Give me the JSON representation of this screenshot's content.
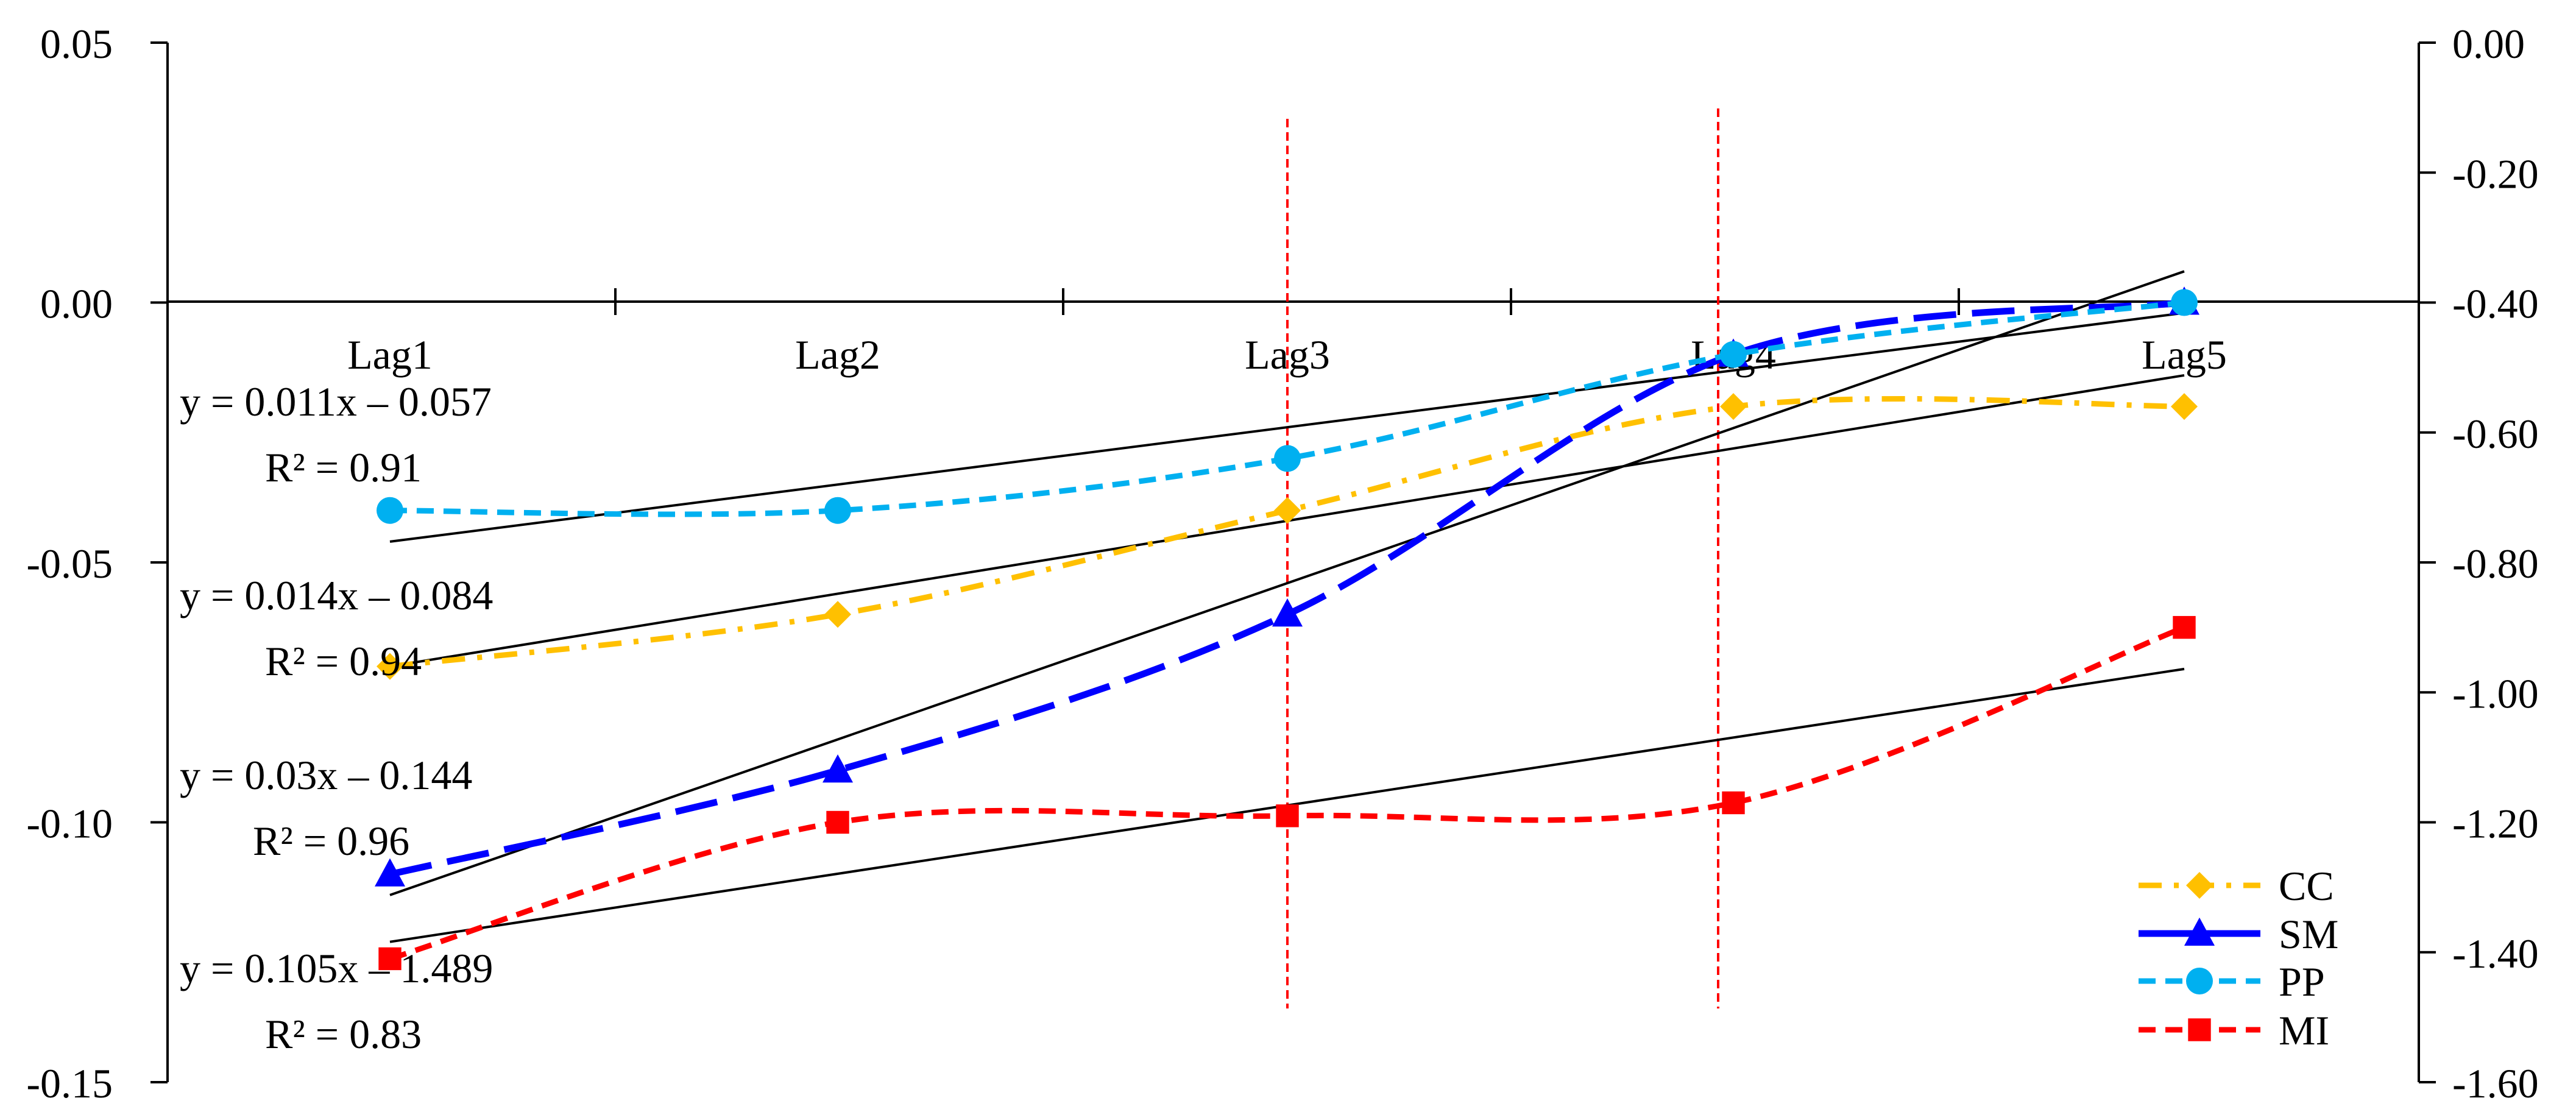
{
  "chart_data": {
    "type": "line",
    "categories": [
      "Lag1",
      "Lag2",
      "Lag3",
      "Lag4",
      "Lag5"
    ],
    "y_left": {
      "range": [
        -0.15,
        0.05
      ],
      "ticks": [
        "0.05",
        "0.00",
        "-0.05",
        "-0.10",
        "-0.15"
      ],
      "tick_values": [
        0.05,
        0.0,
        -0.05,
        -0.1,
        -0.15
      ]
    },
    "y_right": {
      "range": [
        -1.6,
        0.0
      ],
      "ticks": [
        "0.00",
        "-0.20",
        "-0.40",
        "-0.60",
        "-0.80",
        "-1.00",
        "-1.20",
        "-1.40",
        "-1.60"
      ],
      "tick_values": [
        0.0,
        -0.2,
        -0.4,
        -0.6,
        -0.8,
        -1.0,
        -1.2,
        -1.4,
        -1.6
      ]
    },
    "series": [
      {
        "name": "CC",
        "axis": "left",
        "color": "#FFC000",
        "marker": "diamond",
        "dash": "dashdot",
        "values": [
          -0.07,
          -0.06,
          -0.04,
          -0.02,
          -0.02
        ]
      },
      {
        "name": "SM",
        "axis": "left",
        "color": "#0000FF",
        "marker": "triangle",
        "dash": "longdash",
        "values": [
          -0.11,
          -0.09,
          -0.06,
          -0.01,
          0.0
        ]
      },
      {
        "name": "PP",
        "axis": "left",
        "color": "#00B0F0",
        "marker": "circle",
        "dash": "dash",
        "values": [
          -0.04,
          -0.04,
          -0.03,
          -0.01,
          0.0
        ]
      },
      {
        "name": "MI",
        "axis": "right",
        "color": "#FF0000",
        "marker": "square",
        "dash": "dash",
        "values": [
          -1.41,
          -1.2,
          -1.19,
          -1.17,
          -0.9
        ]
      }
    ],
    "trendlines": [
      {
        "series": "PP",
        "equation": "y = 0.011x – 0.057",
        "r2": "R² = 0.91",
        "slope": 0.011,
        "intercept": -0.057,
        "axis": "left"
      },
      {
        "series": "CC",
        "equation": "y = 0.014x – 0.084",
        "r2": "R² = 0.94",
        "slope": 0.014,
        "intercept": -0.084,
        "axis": "left"
      },
      {
        "series": "SM",
        "equation": "y = 0.03x – 0.144",
        "r2": "R² = 0.96",
        "slope": 0.03,
        "intercept": -0.144,
        "axis": "left"
      },
      {
        "series": "MI",
        "equation": "y = 0.105x – 1.489",
        "r2": "R² = 0.83",
        "slope": 0.105,
        "intercept": -1.489,
        "axis": "right"
      }
    ],
    "reference_lines": [
      {
        "at": "Lag3",
        "color": "#FF0000",
        "style": "dotted"
      },
      {
        "at": "between Lag4 and Lag3 (near Lag4)",
        "color": "#FF0000",
        "style": "dotted"
      }
    ],
    "legend": {
      "placement": "bottom-right",
      "entries": [
        "CC",
        "SM",
        "PP",
        "MI"
      ]
    },
    "grid": false,
    "title": "",
    "xlabel": "",
    "ylabel": ""
  }
}
